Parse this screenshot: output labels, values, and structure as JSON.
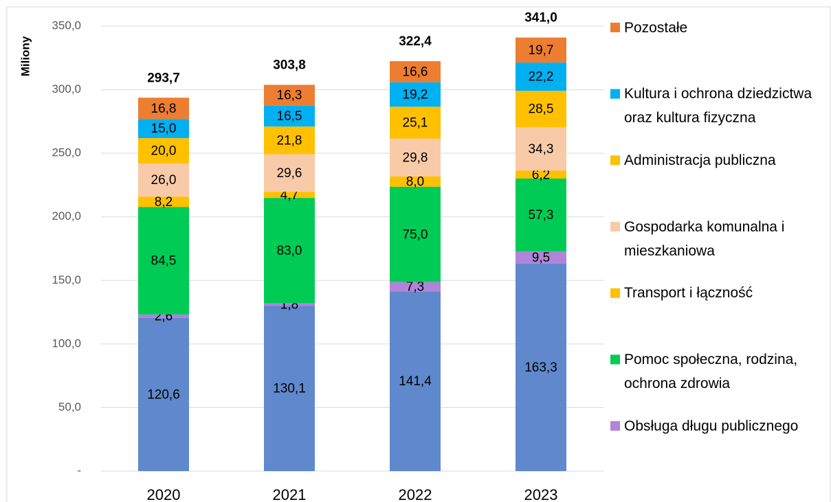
{
  "chart_data": {
    "type": "stacked_bar",
    "y_label": "Miliony",
    "categories": [
      "2020",
      "2021",
      "2022",
      "2023"
    ],
    "ylim": [
      0,
      350
    ],
    "yticks": [
      {
        "value": 0,
        "label": "-"
      },
      {
        "value": 50,
        "label": "50,0"
      },
      {
        "value": 100,
        "label": "100,0"
      },
      {
        "value": 150,
        "label": "150,0"
      },
      {
        "value": 200,
        "label": "200,0"
      },
      {
        "value": 250,
        "label": "250,0"
      },
      {
        "value": 300,
        "label": "300,0"
      },
      {
        "value": 350,
        "label": "350,0"
      }
    ],
    "grid": true,
    "series": [
      {
        "name": null,
        "color": "#6088cc",
        "values": [
          120.6,
          130.1,
          141.4,
          163.3
        ],
        "value_labels": [
          "120,6",
          "130,1",
          "141,4",
          "163,3"
        ]
      },
      {
        "name": "Obsługa długu publicznego",
        "color": "#b084d8",
        "values": [
          2.6,
          1.8,
          7.3,
          9.5
        ],
        "value_labels": [
          "2,6",
          "1,8",
          "7,3",
          "9,5"
        ]
      },
      {
        "name": "Pomoc społeczna, rodzina, ochrona zdrowia",
        "color": "#00cc55",
        "values": [
          84.5,
          83.0,
          75.0,
          57.3
        ],
        "value_labels": [
          "84,5",
          "83,0",
          "75,0",
          "57,3"
        ]
      },
      {
        "name": "Transport i łączność",
        "color": "#ffc000",
        "values": [
          8.2,
          4.7,
          8.0,
          6.2
        ],
        "value_labels": [
          "8,2",
          "4,7",
          "8,0",
          "6,2"
        ]
      },
      {
        "name": "Gospodarka komunalna i mieszkaniowa",
        "color": "#f8caa8",
        "values": [
          26.0,
          29.6,
          29.8,
          34.3
        ],
        "value_labels": [
          "26,0",
          "29,6",
          "29,8",
          "34,3"
        ]
      },
      {
        "name": "Administracja publiczna",
        "color": "#ffc000",
        "values": [
          20.0,
          21.8,
          25.1,
          28.5
        ],
        "value_labels": [
          "20,0",
          "21,8",
          "25,1",
          "28,5"
        ]
      },
      {
        "name": "Kultura i ochrona dziedzictwa oraz kultura fizyczna",
        "color": "#00b0f0",
        "values": [
          15.0,
          16.5,
          19.2,
          22.2
        ],
        "value_labels": [
          "15,0",
          "16,5",
          "19,2",
          "22,2"
        ]
      },
      {
        "name": "Pozostałe",
        "color": "#ed7d31",
        "values": [
          16.8,
          16.3,
          16.6,
          19.7
        ],
        "value_labels": [
          "16,8",
          "16,3",
          "16,6",
          "19,7"
        ]
      }
    ],
    "totals": [
      293.7,
      303.8,
      322.4,
      341.0
    ],
    "totals_labels": [
      "293,7",
      "303,8",
      "322,4",
      "341,0"
    ]
  }
}
